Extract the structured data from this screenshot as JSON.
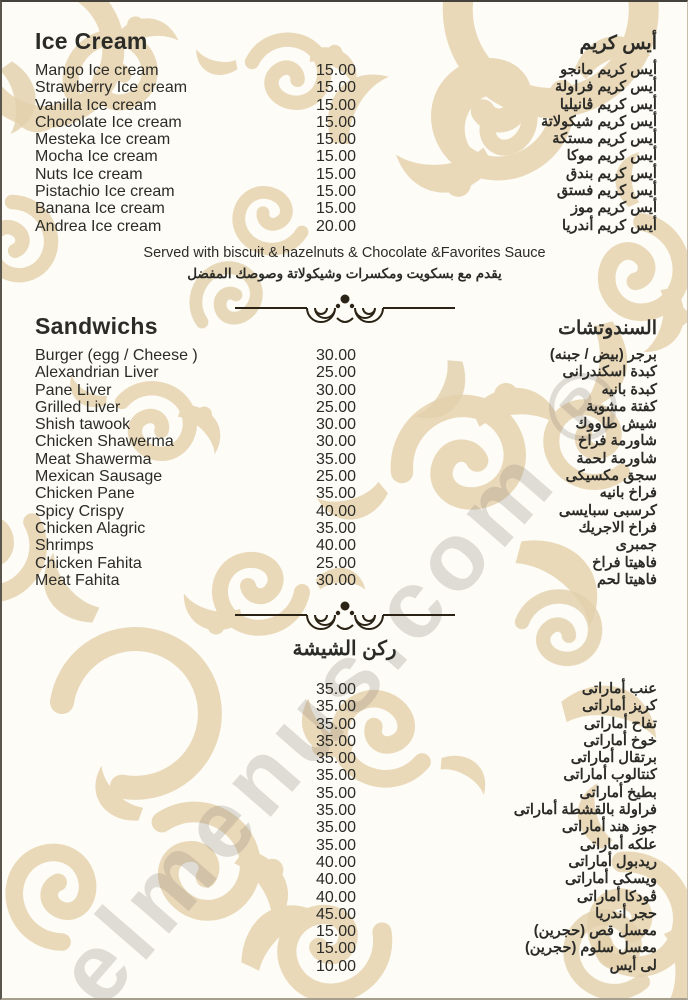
{
  "watermark": "elmenus.com ®",
  "colors": {
    "background": "#fdfcf6",
    "pattern_light": "#ead9b9",
    "pattern_mid": "#e3d1ae",
    "text": "#2b2b28",
    "ornament": "#2b2416"
  },
  "sections": {
    "ice_cream": {
      "title_en": "Ice Cream",
      "title_ar": "أيس كريم",
      "items": [
        {
          "en": "Mango Ice cream",
          "price": "15.00",
          "ar": "أيس كريم مانجو"
        },
        {
          "en": "Strawberry Ice cream",
          "price": "15.00",
          "ar": "أيس كريم فراولة"
        },
        {
          "en": "Vanilla Ice cream",
          "price": "15.00",
          "ar": "أيس كريم ڤانيليا"
        },
        {
          "en": "Chocolate Ice cream",
          "price": "15.00",
          "ar": "أيس كريم شيكولاتة"
        },
        {
          "en": "Mesteka Ice cream",
          "price": "15.00",
          "ar": "أيس كريم مستكة"
        },
        {
          "en": "Mocha Ice cream",
          "price": "15.00",
          "ar": "أيس كريم موكا"
        },
        {
          "en": "Nuts Ice cream",
          "price": "15.00",
          "ar": "أيس كريم بندق"
        },
        {
          "en": "Pistachio Ice cream",
          "price": "15.00",
          "ar": "أيس كريم فستق"
        },
        {
          "en": "Banana Ice cream",
          "price": "15.00",
          "ar": "أيس كريم موز"
        },
        {
          "en": "Andrea Ice cream",
          "price": "20.00",
          "ar": "أيس كريم أندريا"
        }
      ],
      "note_en": "Served with biscuit & hazelnuts & Chocolate &Favorites Sauce",
      "note_ar": "يقدم مع بسكويت ومكسرات وشيكولاتة وصوصك المفضل"
    },
    "sandwiches": {
      "title_en": "Sandwichs",
      "title_ar": "السندوتشات",
      "items": [
        {
          "en": "Burger (egg / Cheese )",
          "price": "30.00",
          "ar": "برجر (بيض / جبنه)"
        },
        {
          "en": "Alexandrian Liver",
          "price": "25.00",
          "ar": "كبدة اسكندرانى"
        },
        {
          "en": "Pane Liver",
          "price": "30.00",
          "ar": "كبدة بانيه"
        },
        {
          "en": "Grilled Liver",
          "price": "25.00",
          "ar": "كفتة مشوية"
        },
        {
          "en": "Shish tawook",
          "price": "30.00",
          "ar": "شيش طاووك"
        },
        {
          "en": "Chicken Shawerma",
          "price": "30.00",
          "ar": "شاورمة فراخ"
        },
        {
          "en": "Meat Shawerma",
          "price": "35.00",
          "ar": "شاورمة لحمة"
        },
        {
          "en": "Mexican Sausage",
          "price": "25.00",
          "ar": "سجق مكسيكى"
        },
        {
          "en": "Chicken Pane",
          "price": "35.00",
          "ar": "فراخ بانيه"
        },
        {
          "en": "Spicy Crispy",
          "price": "40.00",
          "ar": "كرسبى سبايسى"
        },
        {
          "en": "Chicken Alagric",
          "price": "35.00",
          "ar": "فراخ الاجريك"
        },
        {
          "en": "Shrimps",
          "price": "40.00",
          "ar": "جمبرى"
        },
        {
          "en": "Chicken Fahita",
          "price": "25.00",
          "ar": "فاهيتا فراخ"
        },
        {
          "en": "Meat Fahita",
          "price": "30.00",
          "ar": "فاهيتا لحم"
        }
      ]
    },
    "shisha": {
      "title_ar": "ركن الشيشة",
      "items": [
        {
          "en": "",
          "price": "35.00",
          "ar": "عنب أماراتى"
        },
        {
          "en": "",
          "price": "35.00",
          "ar": "كريز أماراتى"
        },
        {
          "en": "",
          "price": "35.00",
          "ar": "تفاح أماراتى"
        },
        {
          "en": "",
          "price": "35.00",
          "ar": "خوخ أماراتى"
        },
        {
          "en": "",
          "price": "35.00",
          "ar": "برتقال أماراتى"
        },
        {
          "en": "",
          "price": "35.00",
          "ar": "كنتالوب أماراتى"
        },
        {
          "en": "",
          "price": "35.00",
          "ar": "بطيخ أماراتى"
        },
        {
          "en": "",
          "price": "35.00",
          "ar": "فراولة بالقشطة أماراتى"
        },
        {
          "en": "",
          "price": "35.00",
          "ar": "جوز هند أماراتى"
        },
        {
          "en": "",
          "price": "35.00",
          "ar": "علكه أماراتى"
        },
        {
          "en": "",
          "price": "40.00",
          "ar": "ريدبول أماراتى"
        },
        {
          "en": "",
          "price": "40.00",
          "ar": "ويسكى أماراتى"
        },
        {
          "en": "",
          "price": "40.00",
          "ar": "ڤودكا أماراتى"
        },
        {
          "en": "",
          "price": "45.00",
          "ar": "حجر أندريا"
        },
        {
          "en": "",
          "price": "15.00",
          "ar": "معسل قص (حجرين)"
        },
        {
          "en": "",
          "price": "15.00",
          "ar": "معسل سلوم (حجرين)"
        },
        {
          "en": "",
          "price": "10.00",
          "ar": "لى أيس"
        }
      ]
    }
  }
}
